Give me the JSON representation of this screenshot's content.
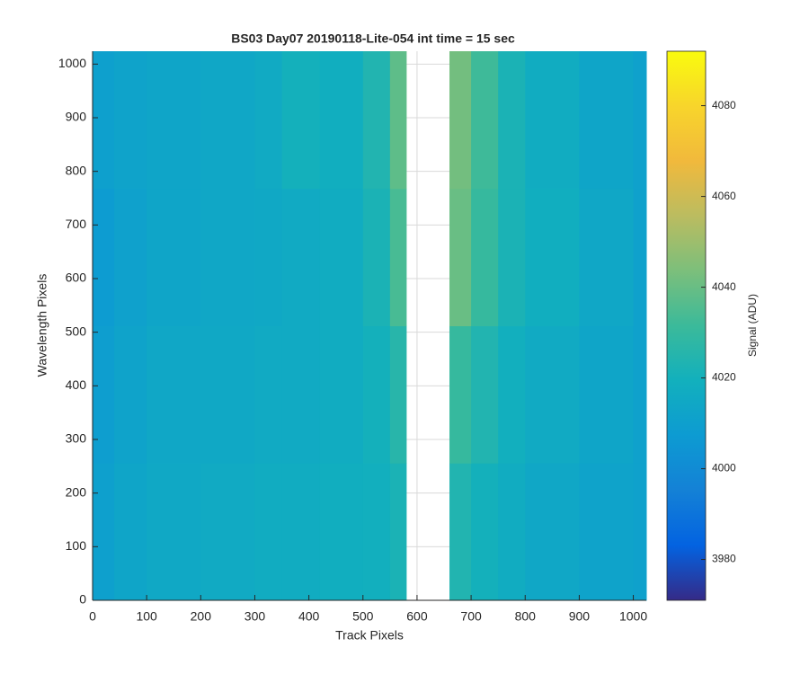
{
  "chart_data": {
    "type": "heatmap",
    "title": "BS03 Day07 20190118-Lite-054 int time = 15 sec",
    "x_label": "Track Pixels",
    "y_label": "Wavelength Pixels",
    "colorbar_label": "Signal (ADU)",
    "colormap": "parula",
    "x_bins": [
      0,
      40,
      100,
      200,
      300,
      350,
      420,
      500,
      550,
      580,
      660,
      700,
      750,
      800,
      900,
      1000,
      1024
    ],
    "y_bins": [
      0,
      256,
      512,
      768,
      1024
    ],
    "values": [
      [
        4010,
        4013,
        4015,
        4016,
        4017,
        4017,
        4018,
        4019,
        4022,
        null,
        4024,
        4020,
        4017,
        4014,
        4012,
        4011
      ],
      [
        4009,
        4012,
        4014,
        4015,
        4016,
        4016,
        4017,
        4020,
        4026,
        null,
        4030,
        4024,
        4019,
        4016,
        4013,
        4011
      ],
      [
        4008,
        4011,
        4013,
        4014,
        4015,
        4016,
        4017,
        4022,
        4034,
        null,
        4040,
        4030,
        4022,
        4018,
        4014,
        4011
      ],
      [
        4010,
        4012,
        4013,
        4014,
        4016,
        4020,
        4018,
        4024,
        4038,
        null,
        4042,
        4032,
        4022,
        4017,
        4013,
        4011
      ]
    ],
    "xlim": [
      0,
      1024
    ],
    "ylim": [
      0,
      1024
    ],
    "xticks": [
      0,
      100,
      200,
      300,
      400,
      500,
      600,
      700,
      800,
      900,
      1000
    ],
    "yticks": [
      0,
      100,
      200,
      300,
      400,
      500,
      600,
      700,
      800,
      900,
      1000
    ],
    "clim": [
      3971,
      4092
    ],
    "colorbar_ticks": [
      3980,
      4000,
      4020,
      4040,
      4060,
      4080
    ],
    "grid": true
  }
}
